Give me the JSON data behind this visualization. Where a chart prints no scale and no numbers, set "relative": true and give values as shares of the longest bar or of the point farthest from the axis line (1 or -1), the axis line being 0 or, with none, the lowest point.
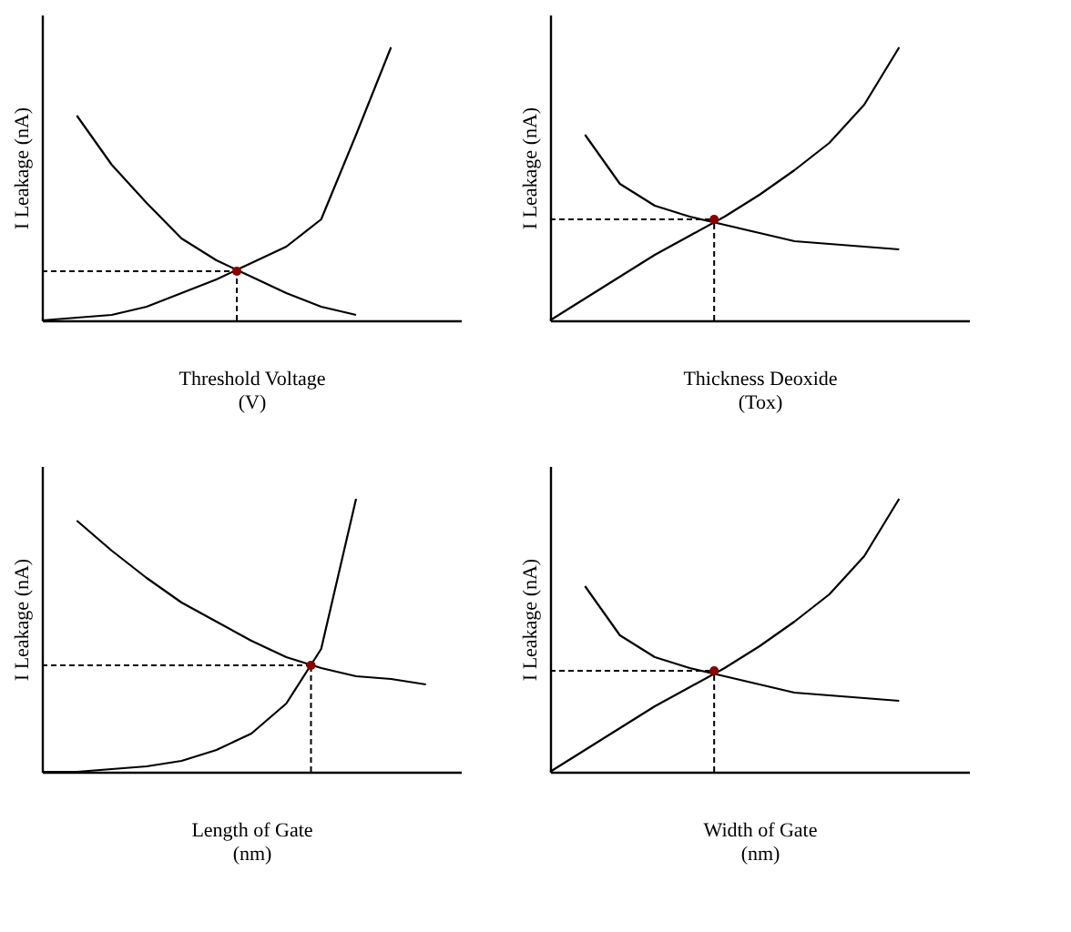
{
  "chart_data": [
    {
      "type": "line",
      "relative": true,
      "ylabel": "I Leakage (nA)",
      "xlabel": "Threshold Voltage\n(V)",
      "categories": [
        null,
        null,
        null,
        null,
        null,
        null,
        null,
        null,
        null,
        null,
        null,
        null,
        null
      ],
      "series": [
        {
          "color": "#000000",
          "values": [
            null,
            0.75,
            0.57,
            0.43,
            0.3,
            0.22,
            0.16,
            0.1,
            0.05,
            0.02,
            null,
            null,
            null
          ]
        },
        {
          "color": "#000000",
          "values": [
            0,
            0.01,
            0.02,
            0.05,
            0.1,
            0.15,
            0.21,
            0.27,
            0.37,
            0.68,
            1,
            null,
            null
          ]
        }
      ],
      "ref_lines": [
        {
          "axis": "y",
          "value": 0.18,
          "line_style": "dashed"
        }
      ]
    },
    {
      "type": "line",
      "relative": true,
      "ylabel": "I Leakage (nA)",
      "xlabel": "Thickness Deoxide\n(Tox)",
      "categories": [
        null,
        null,
        null,
        null,
        null,
        null,
        null,
        null,
        null,
        null,
        null,
        null,
        null
      ],
      "series": [
        {
          "color": "#000000",
          "values": [
            null,
            0.68,
            0.5,
            0.42,
            0.38,
            0.35,
            0.32,
            0.29,
            0.28,
            0.27,
            0.26,
            null,
            null
          ]
        },
        {
          "color": "#000000",
          "values": [
            0,
            0.08,
            0.16,
            0.24,
            0.31,
            0.38,
            0.46,
            0.55,
            0.65,
            0.79,
            1,
            null,
            null
          ]
        }
      ],
      "ref_lines": [
        {
          "axis": "y",
          "value": 0.37,
          "line_style": "dashed"
        }
      ]
    },
    {
      "type": "line",
      "relative": true,
      "ylabel": "I Leakage (nA)",
      "xlabel": "Length of Gate\n(nm)",
      "categories": [
        null,
        null,
        null,
        null,
        null,
        null,
        null,
        null,
        null,
        null,
        null,
        null,
        null
      ],
      "series": [
        {
          "color": "#000000",
          "values": [
            null,
            0.92,
            0.81,
            0.71,
            0.62,
            0.55,
            0.48,
            0.42,
            0.38,
            0.35,
            0.34,
            0.32,
            null
          ]
        },
        {
          "color": "#000000",
          "values": [
            0,
            0,
            0.01,
            0.02,
            0.04,
            0.08,
            0.14,
            0.25,
            0.45,
            1,
            null,
            null,
            null
          ]
        }
      ],
      "ref_lines": [
        {
          "axis": "y",
          "value": 0.39,
          "line_style": "dashed"
        }
      ]
    },
    {
      "type": "line",
      "relative": true,
      "ylabel": "I Leakage (nA)",
      "xlabel": "Width of Gate\n(nm)",
      "categories": [
        null,
        null,
        null,
        null,
        null,
        null,
        null,
        null,
        null,
        null,
        null,
        null,
        null
      ],
      "series": [
        {
          "color": "#000000",
          "values": [
            null,
            0.68,
            0.5,
            0.42,
            0.38,
            0.35,
            0.32,
            0.29,
            0.28,
            0.27,
            0.26,
            null,
            null
          ]
        },
        {
          "color": "#000000",
          "values": [
            0,
            0.08,
            0.16,
            0.24,
            0.31,
            0.38,
            0.46,
            0.55,
            0.65,
            0.79,
            1,
            null,
            null
          ]
        }
      ],
      "ref_lines": [
        {
          "axis": "y",
          "value": 0.37,
          "line_style": "dashed"
        }
      ]
    }
  ]
}
